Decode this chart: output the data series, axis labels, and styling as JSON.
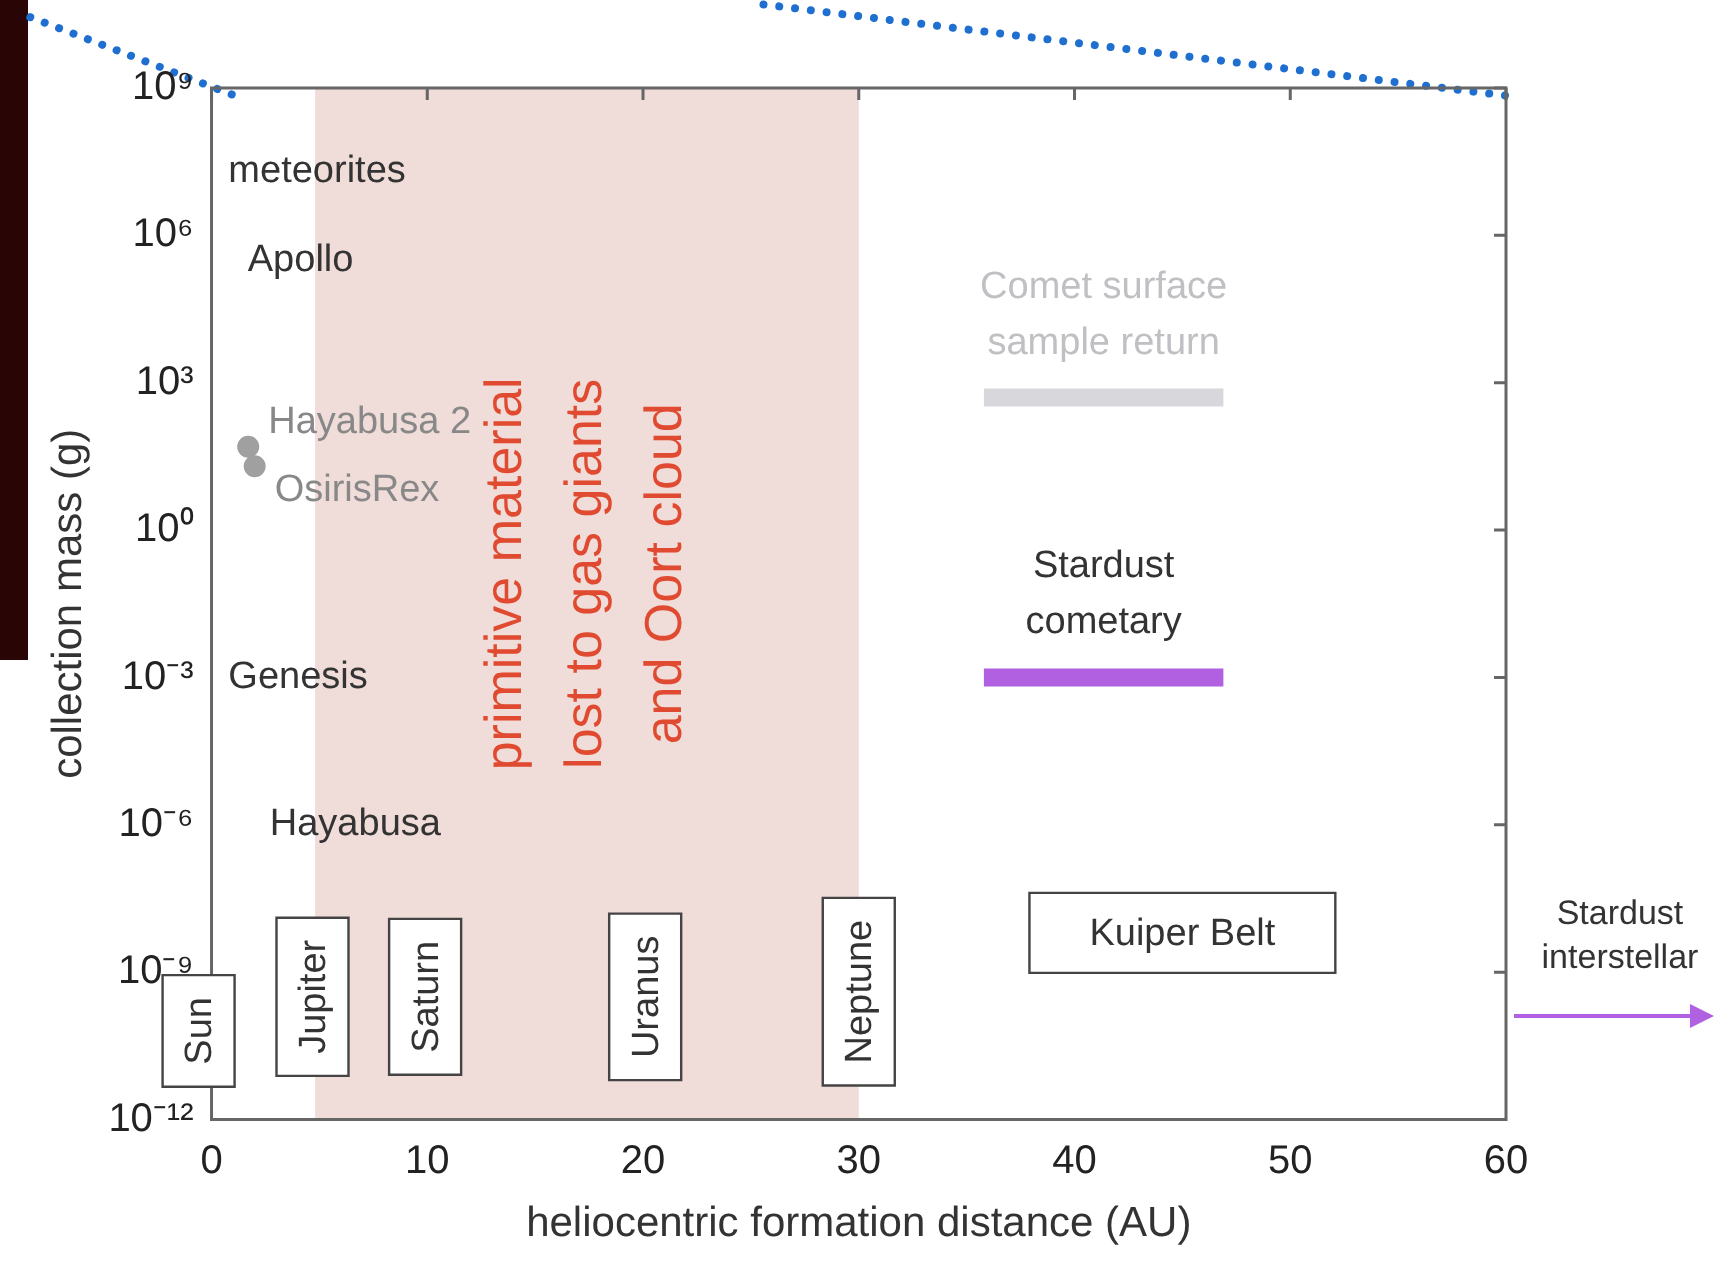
{
  "chart_data": {
    "type": "scatter",
    "xlabel": "heliocentric formation distance (AU)",
    "ylabel": "collection mass (g)",
    "xlim": [
      0,
      60
    ],
    "xticks": [
      0,
      10,
      20,
      30,
      40,
      50,
      60
    ],
    "ylim": [
      1e-12,
      1000000000.0
    ],
    "yticks": [
      {
        "value": 1e-12,
        "label": "10⁻¹²"
      },
      {
        "value": 1e-09,
        "label": "10⁻⁹"
      },
      {
        "value": 1e-06,
        "label": "10⁻⁶"
      },
      {
        "value": 0.001,
        "label": "10⁻³"
      },
      {
        "value": 1,
        "label": "10⁰"
      },
      {
        "value": 1000,
        "label": "10³"
      },
      {
        "value": 1000000.0,
        "label": "10⁶"
      },
      {
        "value": 1000000000.0,
        "label": "10⁹"
      }
    ],
    "log": "y",
    "grid": false,
    "legend": false,
    "series": [
      {
        "name": "Hayabusa 2",
        "color": "#a0a0a0",
        "marker": "circle",
        "x": [
          1.7
        ],
        "values": [
          50
        ]
      },
      {
        "name": "OsirisRex",
        "color": "#a0a0a0",
        "marker": "circle",
        "x": [
          2.0
        ],
        "values": [
          20
        ]
      },
      {
        "name": "Comet surface sample return",
        "type": "line",
        "color": "#d8d8dc",
        "marker": "none",
        "x": [
          35.8,
          46.9
        ],
        "values": [
          500,
          500
        ]
      },
      {
        "name": "Stardust cometary",
        "type": "line",
        "color": "#b060e0",
        "marker": "none",
        "x": [
          35.8,
          46.9
        ],
        "values": [
          0.001,
          0.001
        ]
      }
    ],
    "bands": [
      {
        "axis": "x",
        "from": 4.8,
        "to": 30,
        "label": "primitive material lost to gas giants and Oort cloud",
        "color": "#f0dcd8"
      }
    ],
    "annotations": [
      "meteorites",
      "Apollo",
      "Genesis",
      "Hayabusa",
      "Sun",
      "Jupiter",
      "Saturn",
      "Uranus",
      "Neptune",
      "Kuiper Belt",
      "Stardust interstellar"
    ]
  }
}
